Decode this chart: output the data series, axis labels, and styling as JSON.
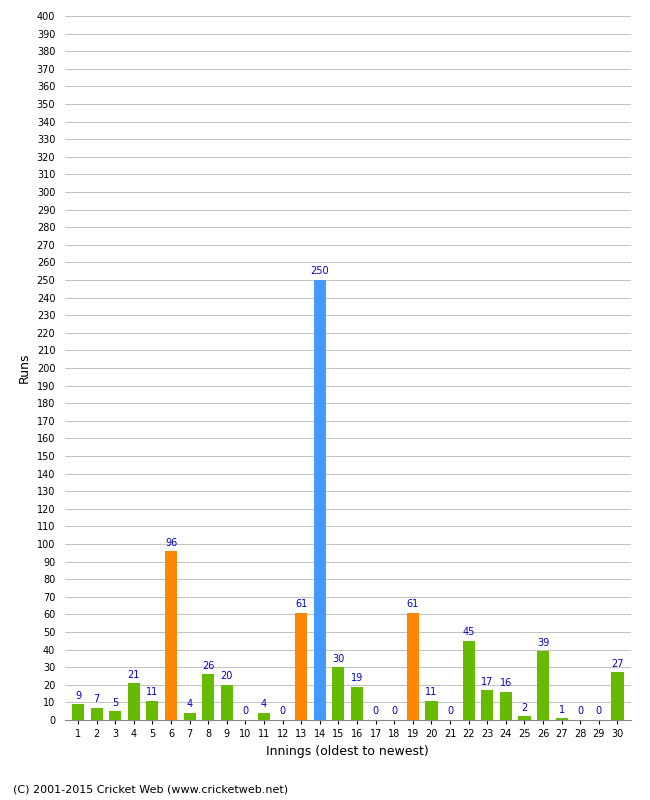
{
  "innings": [
    1,
    2,
    3,
    4,
    5,
    6,
    7,
    8,
    9,
    10,
    11,
    12,
    13,
    14,
    15,
    16,
    17,
    18,
    19,
    20,
    21,
    22,
    23,
    24,
    25,
    26,
    27,
    28,
    29,
    30
  ],
  "runs": [
    9,
    7,
    5,
    21,
    11,
    96,
    4,
    26,
    20,
    0,
    4,
    0,
    61,
    250,
    30,
    19,
    0,
    0,
    61,
    11,
    0,
    45,
    17,
    16,
    2,
    39,
    1,
    0,
    0,
    27
  ],
  "colors": [
    "#66bb00",
    "#66bb00",
    "#66bb00",
    "#66bb00",
    "#66bb00",
    "#ff8800",
    "#66bb00",
    "#66bb00",
    "#66bb00",
    "#66bb00",
    "#66bb00",
    "#66bb00",
    "#ff8800",
    "#4499ff",
    "#66bb00",
    "#66bb00",
    "#66bb00",
    "#66bb00",
    "#ff8800",
    "#66bb00",
    "#66bb00",
    "#66bb00",
    "#66bb00",
    "#66bb00",
    "#66bb00",
    "#66bb00",
    "#66bb00",
    "#66bb00",
    "#66bb00",
    "#66bb00"
  ],
  "ylim": [
    0,
    400
  ],
  "ytick_step": 10,
  "ylabel": "Runs",
  "xlabel": "Innings (oldest to newest)",
  "footer": "(C) 2001-2015 Cricket Web (www.cricketweb.net)",
  "label_color": "#0000cc",
  "grid_color": "#aaaaaa",
  "bg_color": "#ffffff",
  "bar_width": 0.65,
  "label_fontsize": 7,
  "tick_fontsize": 7,
  "axis_label_fontsize": 9,
  "footer_fontsize": 8
}
